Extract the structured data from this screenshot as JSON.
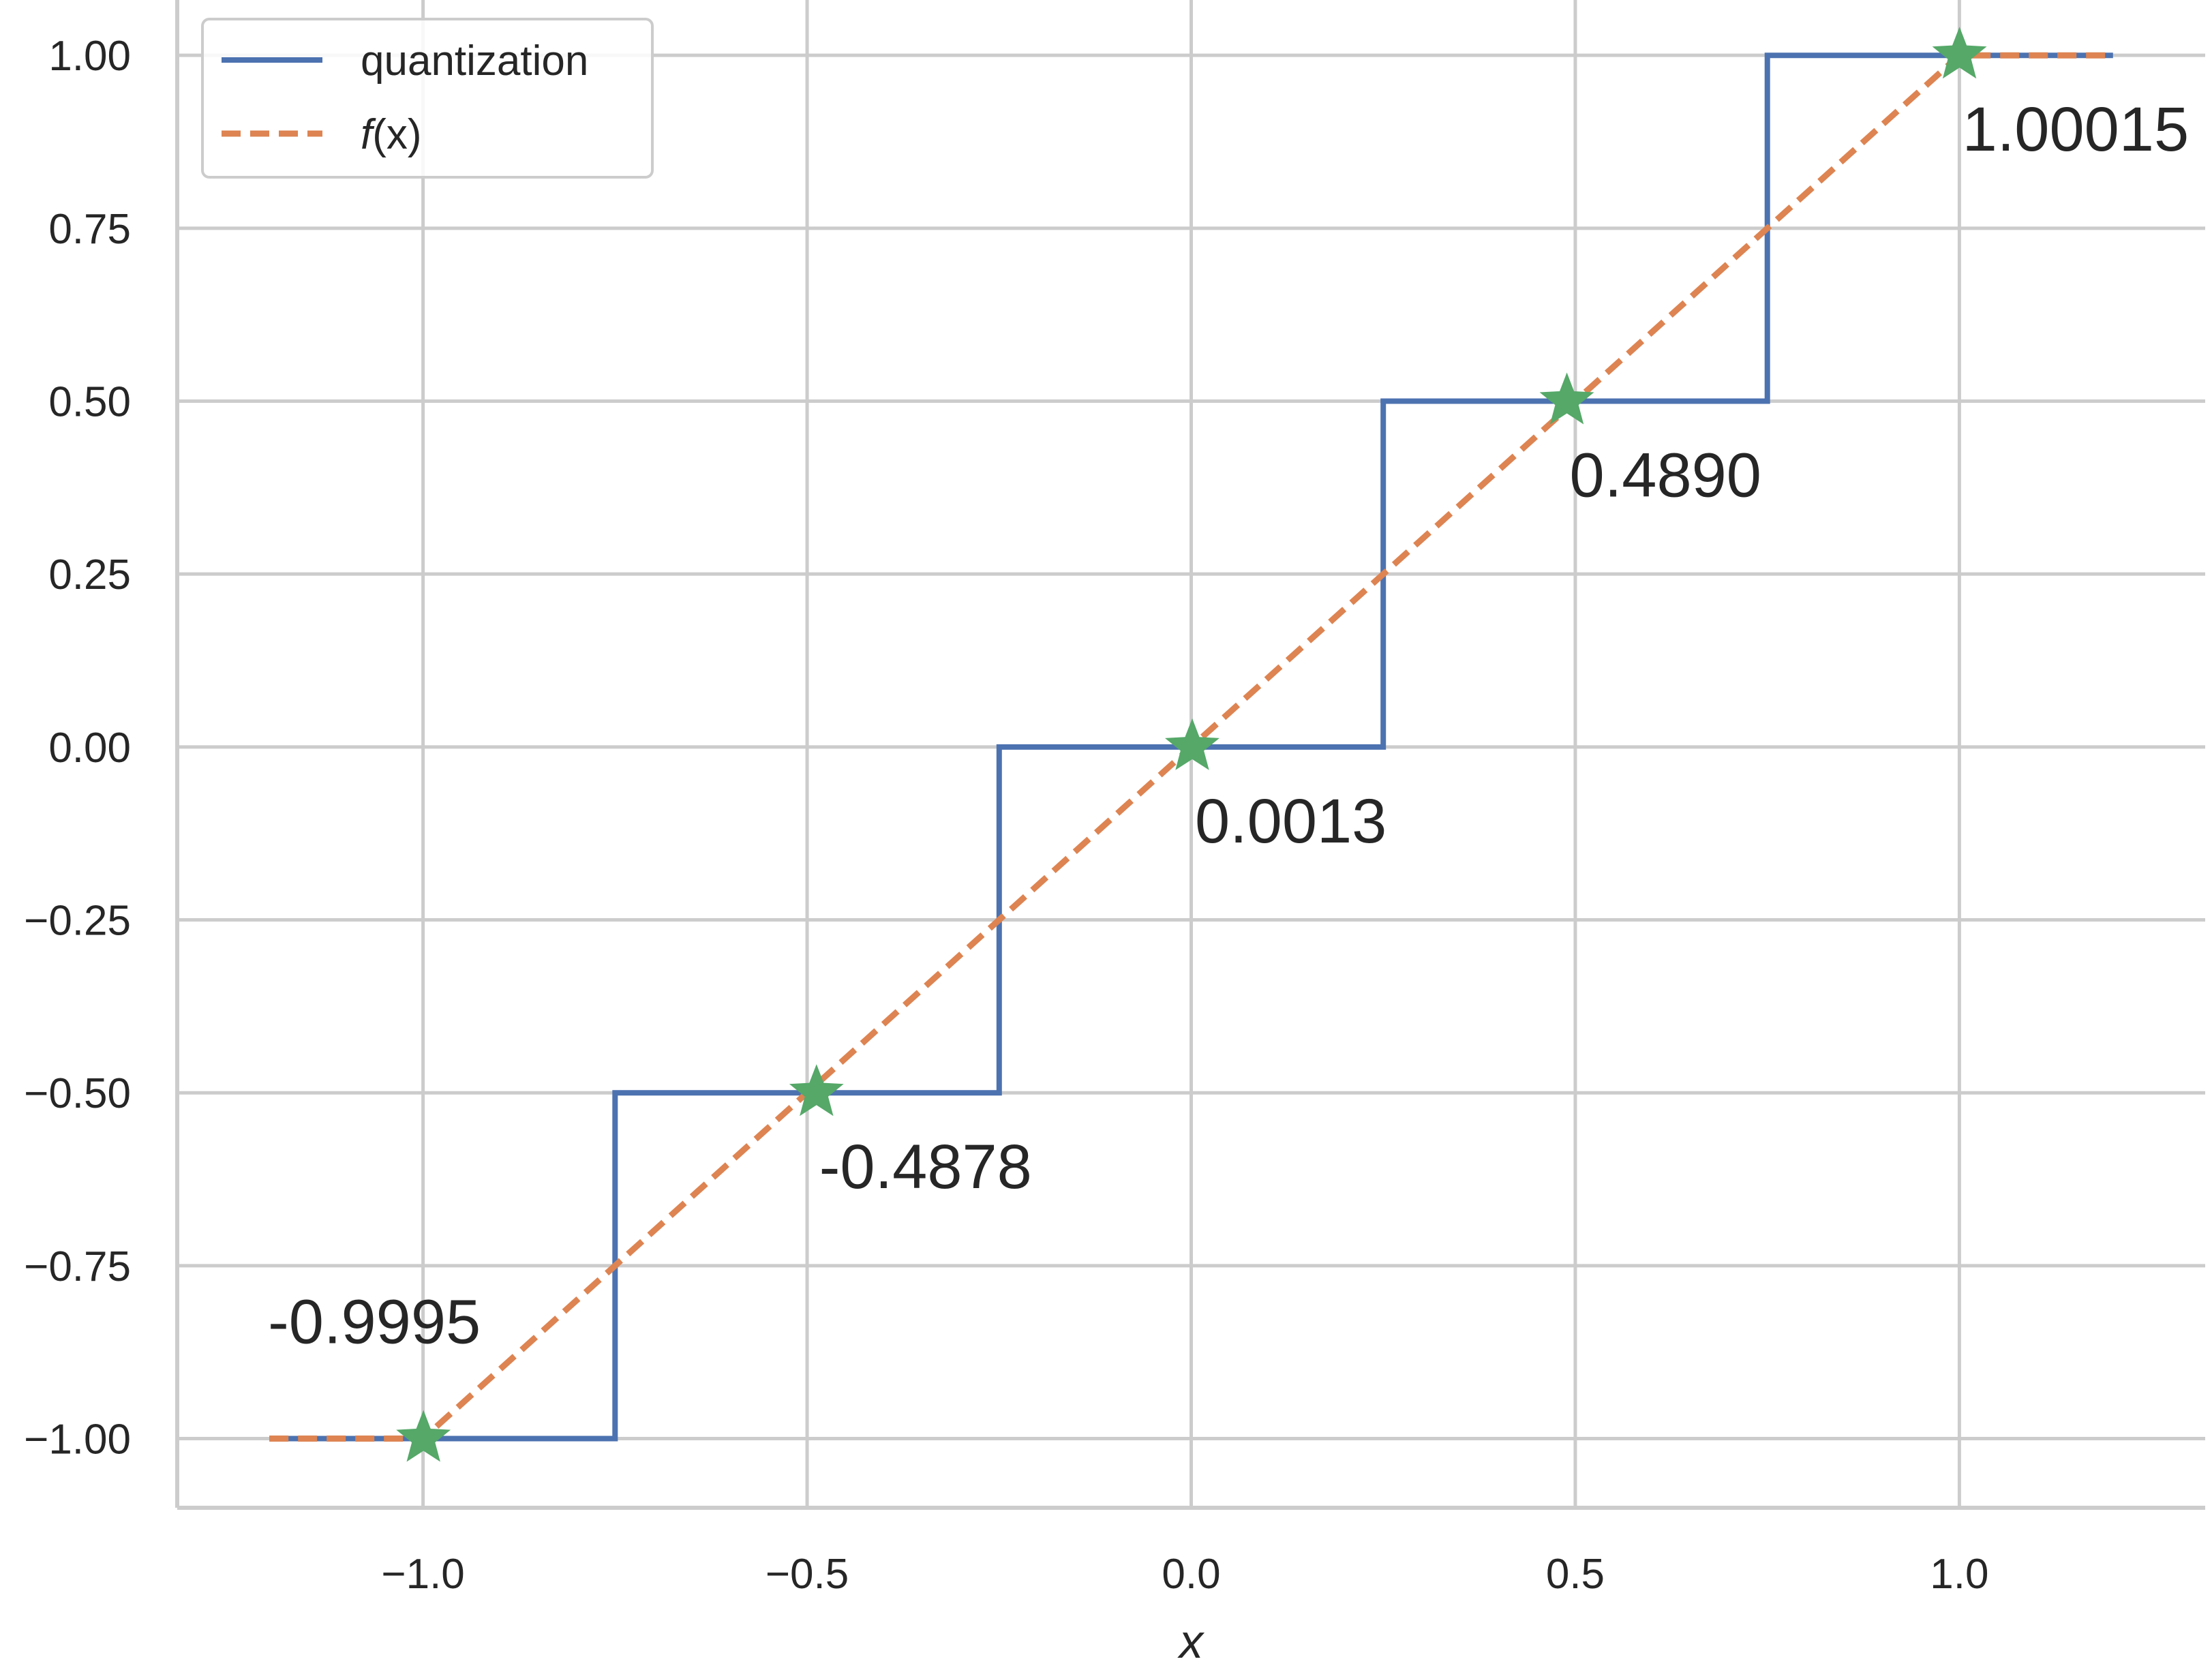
{
  "chart_data": {
    "type": "line",
    "xlabel": "x",
    "ylabel": "",
    "xlim": [
      -1.32,
      1.32
    ],
    "ylim": [
      -1.1,
      1.08
    ],
    "x_ticks": [
      -1.0,
      -0.5,
      0.0,
      0.5,
      1.0
    ],
    "x_tick_labels": [
      "−1.0",
      "−0.5",
      "0.0",
      "0.5",
      "1.0"
    ],
    "y_ticks": [
      1.0,
      0.75,
      0.5,
      0.25,
      0.0,
      -0.25,
      -0.5,
      -0.75,
      -1.0
    ],
    "y_tick_labels": [
      "1.00",
      "0.75",
      "0.50",
      "0.25",
      "0.00",
      "−0.25",
      "−0.50",
      "−0.75",
      "−1.00"
    ],
    "grid": true,
    "legend_position": "top-left",
    "series": [
      {
        "name": "quantization",
        "style": "solid",
        "color": "#4c72b0",
        "x": [
          -1.2,
          -0.75,
          -0.75,
          -0.25,
          -0.25,
          0.25,
          0.25,
          0.75,
          0.75,
          1.2
        ],
        "y": [
          -1.0,
          -1.0,
          -0.5,
          -0.5,
          0.0,
          0.0,
          0.5,
          0.5,
          1.0,
          1.0
        ]
      },
      {
        "name": "f(x)",
        "style": "dashed",
        "color": "#dd8452",
        "x": [
          -1.2,
          -1.0,
          1.0,
          1.2
        ],
        "y": [
          -1.0,
          -1.0,
          1.0,
          1.0
        ]
      }
    ],
    "markers": {
      "shape": "star",
      "color": "#55a868",
      "points": [
        {
          "x": -0.9995,
          "y": -1.0,
          "label": "-0.9995"
        },
        {
          "x": -0.4878,
          "y": -0.5,
          "label": "-0.4878"
        },
        {
          "x": 0.0013,
          "y": 0.0,
          "label": "0.0013"
        },
        {
          "x": 0.489,
          "y": 0.5,
          "label": "0.4890"
        },
        {
          "x": 1.00015,
          "y": 1.0,
          "label": "1.00015"
        }
      ]
    },
    "legend": {
      "entries": [
        {
          "label": "quantization",
          "style": "solid",
          "color": "#4c72b0"
        },
        {
          "label_prefix": "f",
          "label_suffix": "(x)",
          "style": "dashed",
          "color": "#dd8452"
        }
      ]
    }
  },
  "colors": {
    "grid": "#cccccc",
    "text": "#262626",
    "legend_border": "#cccccc"
  }
}
